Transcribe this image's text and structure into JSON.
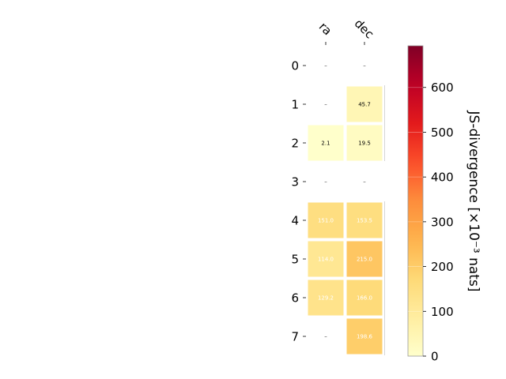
{
  "chart_data": {
    "type": "heatmap",
    "columns": [
      "ra",
      "dec"
    ],
    "rows": [
      "0",
      "1",
      "2",
      "3",
      "4",
      "5",
      "6",
      "7"
    ],
    "values": [
      [
        null,
        null
      ],
      [
        null,
        45.7
      ],
      [
        2.1,
        19.5
      ],
      [
        null,
        null
      ],
      [
        151.0,
        153.5
      ],
      [
        114.0,
        215.0
      ],
      [
        129.2,
        166.0
      ],
      [
        null,
        198.6
      ]
    ],
    "cell_labels": [
      [
        "–",
        "–"
      ],
      [
        "–",
        "45.7"
      ],
      [
        "2.1",
        "19.5"
      ],
      [
        "–",
        "–"
      ],
      [
        "151.0",
        "153.5"
      ],
      [
        "114.0",
        "215.0"
      ],
      [
        "129.2",
        "166.0"
      ],
      [
        "–",
        "198.6"
      ]
    ],
    "colorbar": {
      "label": "JS-divergence [×10⁻³ nats]",
      "range": [
        0,
        693
      ],
      "ticks": [
        0,
        100,
        200,
        300,
        400,
        500,
        600
      ],
      "colormap": "YlOrRd"
    }
  }
}
